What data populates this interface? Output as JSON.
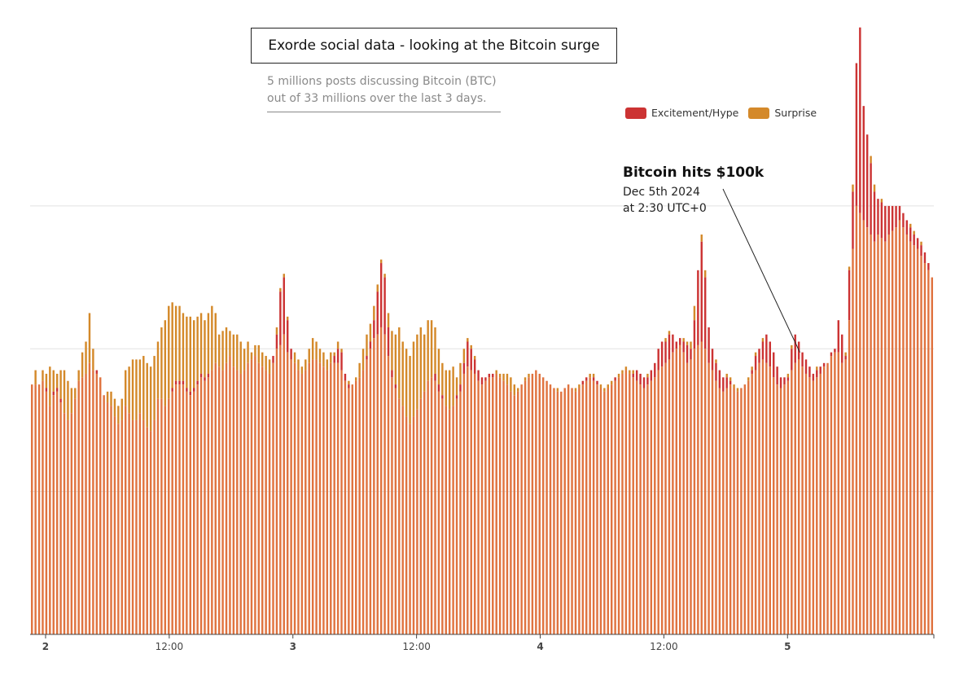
{
  "chart_data": {
    "type": "bar",
    "stacked": true,
    "title": "Exorde social data - looking at the Bitcoin surge",
    "subtitle_lines": [
      "5 millions posts discussing Bitcoin (BTC)",
      "out of 33 millions over the last 3 days."
    ],
    "legend": [
      {
        "name": "Excitement/Hype",
        "color": "#cc3333"
      },
      {
        "name": "Surprise",
        "color": "#d4892a"
      }
    ],
    "series_colors": {
      "hype_outline": "#cc3333",
      "surprise_outline": "#d4892a",
      "fill": "#e0733f"
    },
    "ylim": [
      0,
      820
    ],
    "gridlines": [
      200,
      400,
      600
    ],
    "x_ticks": [
      {
        "label": "2",
        "hour": 3,
        "major": true
      },
      {
        "label": "12:00",
        "hour": 15,
        "major": false
      },
      {
        "label": "3",
        "hour": 27,
        "major": true
      },
      {
        "label": "12:00",
        "hour": 39,
        "major": false
      },
      {
        "label": "4",
        "hour": 51,
        "major": true
      },
      {
        "label": "12:00",
        "hour": 63,
        "major": false
      },
      {
        "label": "5",
        "hour": 75,
        "major": true
      }
    ],
    "x_range_hours": [
      1.5,
      89.2
    ],
    "annotation": {
      "title": "Bitcoin hits $100k",
      "line1": "Dec 5th 2024",
      "line2": "at 2:30 UTC+0",
      "hour": 76.2
    },
    "points": [
      [
        350,
        350,
        350
      ],
      [
        350,
        350,
        370
      ],
      [
        350,
        350,
        340
      ],
      [
        355,
        355,
        370
      ],
      [
        340,
        345,
        365
      ],
      [
        320,
        320,
        375
      ],
      [
        335,
        340,
        370
      ],
      [
        340,
        345,
        365
      ],
      [
        325,
        330,
        370
      ],
      [
        310,
        310,
        370
      ],
      [
        300,
        300,
        355
      ],
      [
        310,
        310,
        345
      ],
      [
        330,
        330,
        345
      ],
      [
        355,
        355,
        370
      ],
      [
        360,
        360,
        395
      ],
      [
        365,
        365,
        410
      ],
      [
        380,
        380,
        450
      ],
      [
        370,
        370,
        400
      ],
      [
        365,
        370,
        370
      ],
      [
        360,
        360,
        360
      ],
      [
        335,
        335,
        335
      ],
      [
        325,
        325,
        340
      ],
      [
        320,
        320,
        340
      ],
      [
        305,
        305,
        330
      ],
      [
        295,
        295,
        320
      ],
      [
        300,
        300,
        330
      ],
      [
        320,
        320,
        370
      ],
      [
        310,
        310,
        375
      ],
      [
        300,
        300,
        385
      ],
      [
        300,
        300,
        385
      ],
      [
        310,
        310,
        385
      ],
      [
        300,
        300,
        390
      ],
      [
        290,
        290,
        380
      ],
      [
        285,
        285,
        375
      ],
      [
        300,
        300,
        390
      ],
      [
        330,
        330,
        410
      ],
      [
        330,
        330,
        430
      ],
      [
        320,
        320,
        440
      ],
      [
        330,
        330,
        460
      ],
      [
        340,
        345,
        465
      ],
      [
        350,
        355,
        460
      ],
      [
        350,
        355,
        460
      ],
      [
        350,
        355,
        450
      ],
      [
        340,
        345,
        445
      ],
      [
        335,
        340,
        445
      ],
      [
        340,
        345,
        440
      ],
      [
        350,
        355,
        445
      ],
      [
        360,
        365,
        450
      ],
      [
        355,
        360,
        440
      ],
      [
        360,
        365,
        450
      ],
      [
        370,
        370,
        460
      ],
      [
        380,
        380,
        450
      ],
      [
        375,
        375,
        420
      ],
      [
        370,
        370,
        425
      ],
      [
        380,
        380,
        430
      ],
      [
        390,
        390,
        425
      ],
      [
        375,
        375,
        420
      ],
      [
        370,
        370,
        420
      ],
      [
        365,
        365,
        410
      ],
      [
        370,
        370,
        400
      ],
      [
        380,
        380,
        410
      ],
      [
        385,
        385,
        395
      ],
      [
        390,
        390,
        405
      ],
      [
        380,
        380,
        405
      ],
      [
        375,
        375,
        395
      ],
      [
        370,
        370,
        390
      ],
      [
        365,
        365,
        385
      ],
      [
        380,
        390,
        390
      ],
      [
        400,
        420,
        430
      ],
      [
        405,
        480,
        485
      ],
      [
        420,
        500,
        505
      ],
      [
        395,
        440,
        445
      ],
      [
        385,
        400,
        400
      ],
      [
        380,
        380,
        395
      ],
      [
        370,
        370,
        385
      ],
      [
        365,
        365,
        375
      ],
      [
        370,
        370,
        385
      ],
      [
        380,
        380,
        400
      ],
      [
        385,
        385,
        415
      ],
      [
        385,
        385,
        410
      ],
      [
        380,
        380,
        400
      ],
      [
        375,
        375,
        395
      ],
      [
        370,
        370,
        385
      ],
      [
        380,
        380,
        395
      ],
      [
        380,
        390,
        395
      ],
      [
        380,
        400,
        410
      ],
      [
        370,
        395,
        400
      ],
      [
        355,
        365,
        365
      ],
      [
        345,
        350,
        355
      ],
      [
        350,
        350,
        350
      ],
      [
        355,
        355,
        360
      ],
      [
        360,
        360,
        380
      ],
      [
        370,
        370,
        400
      ],
      [
        385,
        390,
        420
      ],
      [
        400,
        410,
        435
      ],
      [
        415,
        440,
        460
      ],
      [
        420,
        480,
        490
      ],
      [
        430,
        520,
        525
      ],
      [
        420,
        500,
        505
      ],
      [
        390,
        430,
        450
      ],
      [
        360,
        370,
        425
      ],
      [
        345,
        350,
        420
      ],
      [
        330,
        330,
        430
      ],
      [
        320,
        320,
        410
      ],
      [
        305,
        305,
        400
      ],
      [
        295,
        295,
        390
      ],
      [
        305,
        305,
        410
      ],
      [
        315,
        315,
        420
      ],
      [
        330,
        330,
        430
      ],
      [
        340,
        340,
        420
      ],
      [
        355,
        355,
        440
      ],
      [
        360,
        360,
        440
      ],
      [
        355,
        365,
        430
      ],
      [
        340,
        350,
        400
      ],
      [
        330,
        335,
        380
      ],
      [
        320,
        320,
        370
      ],
      [
        315,
        315,
        370
      ],
      [
        320,
        320,
        375
      ],
      [
        330,
        335,
        360
      ],
      [
        340,
        350,
        380
      ],
      [
        365,
        380,
        400
      ],
      [
        375,
        410,
        415
      ],
      [
        370,
        400,
        405
      ],
      [
        365,
        385,
        390
      ],
      [
        355,
        370,
        370
      ],
      [
        350,
        360,
        360
      ],
      [
        355,
        360,
        360
      ],
      [
        360,
        365,
        365
      ],
      [
        360,
        365,
        365
      ],
      [
        365,
        365,
        370
      ],
      [
        360,
        360,
        365
      ],
      [
        355,
        355,
        365
      ],
      [
        350,
        350,
        365
      ],
      [
        340,
        340,
        360
      ],
      [
        335,
        335,
        350
      ],
      [
        340,
        340,
        345
      ],
      [
        350,
        350,
        350
      ],
      [
        355,
        355,
        360
      ],
      [
        360,
        360,
        365
      ],
      [
        365,
        365,
        365
      ],
      [
        370,
        370,
        370
      ],
      [
        365,
        365,
        365
      ],
      [
        360,
        360,
        360
      ],
      [
        355,
        355,
        355
      ],
      [
        350,
        350,
        350
      ],
      [
        345,
        345,
        345
      ],
      [
        340,
        340,
        345
      ],
      [
        340,
        340,
        340
      ],
      [
        345,
        345,
        345
      ],
      [
        350,
        350,
        350
      ],
      [
        345,
        345,
        345
      ],
      [
        340,
        340,
        345
      ],
      [
        345,
        345,
        350
      ],
      [
        350,
        355,
        355
      ],
      [
        355,
        360,
        360
      ],
      [
        360,
        360,
        365
      ],
      [
        355,
        360,
        365
      ],
      [
        350,
        355,
        355
      ],
      [
        345,
        345,
        350
      ],
      [
        340,
        340,
        345
      ],
      [
        345,
        345,
        350
      ],
      [
        350,
        350,
        355
      ],
      [
        355,
        360,
        360
      ],
      [
        360,
        360,
        365
      ],
      [
        365,
        365,
        370
      ],
      [
        370,
        370,
        375
      ],
      [
        365,
        365,
        370
      ],
      [
        360,
        365,
        370
      ],
      [
        355,
        370,
        370
      ],
      [
        350,
        365,
        365
      ],
      [
        345,
        360,
        360
      ],
      [
        350,
        360,
        365
      ],
      [
        355,
        370,
        370
      ],
      [
        360,
        380,
        380
      ],
      [
        370,
        400,
        400
      ],
      [
        375,
        410,
        410
      ],
      [
        380,
        410,
        415
      ],
      [
        385,
        420,
        425
      ],
      [
        395,
        420,
        420
      ],
      [
        400,
        410,
        410
      ],
      [
        405,
        415,
        415
      ],
      [
        395,
        410,
        415
      ],
      [
        380,
        405,
        410
      ],
      [
        385,
        400,
        410
      ],
      [
        400,
        440,
        460
      ],
      [
        405,
        510,
        510
      ],
      [
        410,
        550,
        560
      ],
      [
        400,
        500,
        510
      ],
      [
        380,
        430,
        420
      ],
      [
        370,
        400,
        400
      ],
      [
        355,
        380,
        385
      ],
      [
        345,
        370,
        370
      ],
      [
        340,
        360,
        360
      ],
      [
        345,
        360,
        365
      ],
      [
        350,
        355,
        360
      ],
      [
        345,
        345,
        350
      ],
      [
        340,
        340,
        345
      ],
      [
        345,
        345,
        345
      ],
      [
        350,
        350,
        350
      ],
      [
        355,
        355,
        360
      ],
      [
        365,
        370,
        375
      ],
      [
        370,
        390,
        395
      ],
      [
        380,
        400,
        400
      ],
      [
        385,
        410,
        415
      ],
      [
        380,
        420,
        420
      ],
      [
        375,
        410,
        410
      ],
      [
        360,
        395,
        395
      ],
      [
        350,
        375,
        375
      ],
      [
        345,
        360,
        360
      ],
      [
        350,
        360,
        360
      ],
      [
        355,
        360,
        365
      ],
      [
        370,
        400,
        405
      ],
      [
        380,
        420,
        420
      ],
      [
        385,
        410,
        410
      ],
      [
        375,
        395,
        395
      ],
      [
        365,
        385,
        385
      ],
      [
        360,
        375,
        375
      ],
      [
        355,
        365,
        365
      ],
      [
        360,
        370,
        375
      ],
      [
        365,
        375,
        375
      ],
      [
        375,
        380,
        380
      ],
      [
        380,
        380,
        380
      ],
      [
        390,
        395,
        395
      ],
      [
        395,
        400,
        400
      ],
      [
        395,
        440,
        440
      ],
      [
        380,
        420,
        420
      ],
      [
        385,
        390,
        395
      ],
      [
        440,
        510,
        515
      ],
      [
        540,
        620,
        630
      ],
      [
        600,
        800,
        800
      ],
      [
        590,
        850,
        850
      ],
      [
        580,
        740,
        740
      ],
      [
        570,
        700,
        700
      ],
      [
        560,
        660,
        670
      ],
      [
        550,
        620,
        630
      ],
      [
        560,
        610,
        610
      ],
      [
        555,
        605,
        610
      ],
      [
        550,
        600,
        600
      ],
      [
        560,
        600,
        600
      ],
      [
        565,
        600,
        600
      ],
      [
        570,
        600,
        600
      ],
      [
        580,
        600,
        600
      ],
      [
        570,
        590,
        590
      ],
      [
        560,
        580,
        580
      ],
      [
        550,
        570,
        575
      ],
      [
        545,
        560,
        565
      ],
      [
        540,
        555,
        555
      ],
      [
        530,
        545,
        550
      ],
      [
        520,
        535,
        535
      ],
      [
        510,
        520,
        520
      ],
      [
        500,
        500,
        500
      ]
    ]
  }
}
